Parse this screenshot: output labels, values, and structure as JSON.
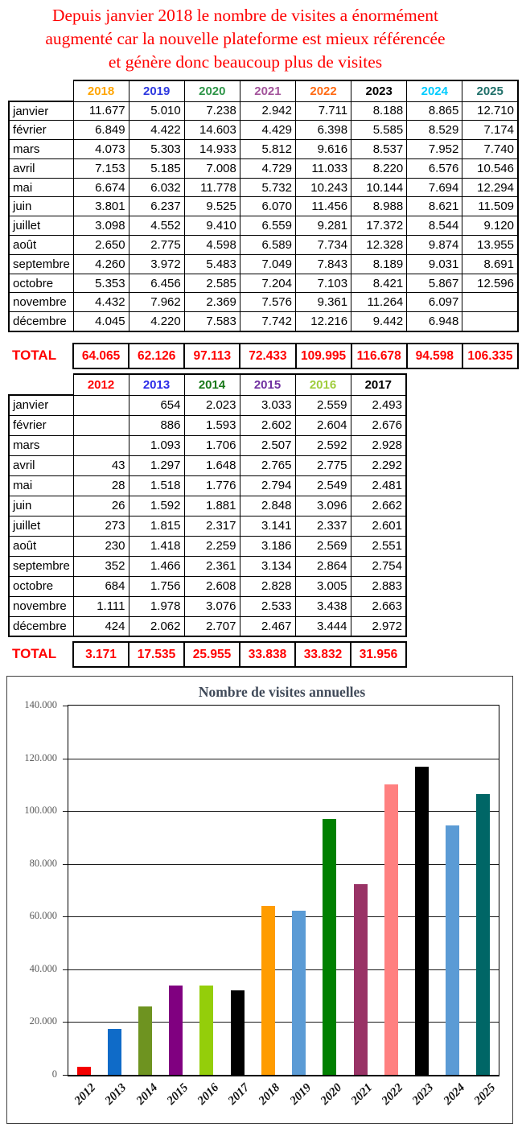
{
  "title": {
    "lines": [
      "Depuis janvier 2018 le nombre de visites a énormément",
      "augmenté car la nouvelle plateforme est mieux référencée",
      "et génère donc beaucoup plus de visites"
    ]
  },
  "table_recent": {
    "columns": [
      {
        "label": "2018",
        "color": "#FFA500"
      },
      {
        "label": "2019",
        "color": "#2E39E0"
      },
      {
        "label": "2020",
        "color": "#2E9548"
      },
      {
        "label": "2021",
        "color": "#A3549B"
      },
      {
        "label": "2022",
        "color": "#FF6A13"
      },
      {
        "label": "2023",
        "color": "#000000"
      },
      {
        "label": "2024",
        "color": "#00CCFF"
      },
      {
        "label": "2025",
        "color": "#20706A"
      }
    ],
    "months": [
      "janvier",
      "février",
      "mars",
      "avril",
      "mai",
      "juin",
      "juillet",
      "août",
      "septembre",
      "octobre",
      "novembre",
      "décembre"
    ],
    "rows": [
      [
        "11.677",
        "5.010",
        "7.238",
        "2.942",
        "7.711",
        "8.188",
        "8.865",
        "12.710"
      ],
      [
        "6.849",
        "4.422",
        "14.603",
        "4.429",
        "6.398",
        "5.585",
        "8.529",
        "7.174"
      ],
      [
        "4.073",
        "5.303",
        "14.933",
        "5.812",
        "9.616",
        "8.537",
        "7.952",
        "7.740"
      ],
      [
        "7.153",
        "5.185",
        "7.008",
        "4.729",
        "11.033",
        "8.220",
        "6.576",
        "10.546"
      ],
      [
        "6.674",
        "6.032",
        "11.778",
        "5.732",
        "10.243",
        "10.144",
        "7.694",
        "12.294"
      ],
      [
        "3.801",
        "6.237",
        "9.525",
        "6.070",
        "11.456",
        "8.988",
        "8.621",
        "11.509"
      ],
      [
        "3.098",
        "4.552",
        "9.410",
        "6.559",
        "9.281",
        "17.372",
        "8.544",
        "9.120"
      ],
      [
        "2.650",
        "2.775",
        "4.598",
        "6.589",
        "7.734",
        "12.328",
        "9.874",
        "13.955"
      ],
      [
        "4.260",
        "3.972",
        "5.483",
        "7.049",
        "7.843",
        "8.189",
        "9.031",
        "8.691"
      ],
      [
        "5.353",
        "6.456",
        "2.585",
        "7.204",
        "7.103",
        "8.421",
        "5.867",
        "12.596"
      ],
      [
        "4.432",
        "7.962",
        "2.369",
        "7.576",
        "9.361",
        "11.264",
        "6.097",
        ""
      ],
      [
        "4.045",
        "4.220",
        "7.583",
        "7.742",
        "12.216",
        "9.442",
        "6.948",
        ""
      ]
    ],
    "total_label": "TOTAL",
    "totals": [
      "64.065",
      "62.126",
      "97.113",
      "72.433",
      "109.995",
      "116.678",
      "94.598",
      "106.335"
    ]
  },
  "table_old": {
    "columns": [
      {
        "label": "2012",
        "color": "#FF0000"
      },
      {
        "label": "2013",
        "color": "#2B2BE8"
      },
      {
        "label": "2014",
        "color": "#187818"
      },
      {
        "label": "2015",
        "color": "#7030A0"
      },
      {
        "label": "2016",
        "color": "#9FCC3B"
      },
      {
        "label": "2017",
        "color": "#000000"
      }
    ],
    "months": [
      "janvier",
      "février",
      "mars",
      "avril",
      "mai",
      "juin",
      "juillet",
      "août",
      "septembre",
      "octobre",
      "novembre",
      "décembre"
    ],
    "rows": [
      [
        "",
        "654",
        "2.023",
        "3.033",
        "2.559",
        "2.493"
      ],
      [
        "",
        "886",
        "1.593",
        "2.602",
        "2.604",
        "2.676"
      ],
      [
        "",
        "1.093",
        "1.706",
        "2.507",
        "2.592",
        "2.928"
      ],
      [
        "43",
        "1.297",
        "1.648",
        "2.765",
        "2.775",
        "2.292"
      ],
      [
        "28",
        "1.518",
        "1.776",
        "2.794",
        "2.549",
        "2.481"
      ],
      [
        "26",
        "1.592",
        "1.881",
        "2.848",
        "3.096",
        "2.662"
      ],
      [
        "273",
        "1.815",
        "2.317",
        "3.141",
        "2.337",
        "2.601"
      ],
      [
        "230",
        "1.418",
        "2.259",
        "3.186",
        "2.569",
        "2.551"
      ],
      [
        "352",
        "1.466",
        "2.361",
        "3.134",
        "2.864",
        "2.754"
      ],
      [
        "684",
        "1.756",
        "2.608",
        "2.828",
        "3.005",
        "2.883"
      ],
      [
        "1.111",
        "1.978",
        "3.076",
        "2.533",
        "3.438",
        "2.663"
      ],
      [
        "424",
        "2.062",
        "2.707",
        "2.467",
        "3.444",
        "2.972"
      ]
    ],
    "total_label": "TOTAL",
    "totals": [
      "3.171",
      "17.535",
      "25.955",
      "33.838",
      "33.832",
      "31.956"
    ]
  },
  "chart_data": {
    "type": "bar",
    "title": "Nombre de visites annuelles",
    "categories": [
      "2012",
      "2013",
      "2014",
      "2015",
      "2016",
      "2017",
      "2018",
      "2019",
      "2020",
      "2021",
      "2022",
      "2023",
      "2024",
      "2025"
    ],
    "values": [
      3171,
      17535,
      25955,
      33838,
      33832,
      31956,
      64065,
      62126,
      97113,
      72433,
      109995,
      116678,
      94598,
      106335
    ],
    "bar_colors": [
      "#F40000",
      "#0F6BC8",
      "#6E9320",
      "#800080",
      "#94CE0A",
      "#000000",
      "#FF9C00",
      "#5B9BD5",
      "#008000",
      "#993366",
      "#FF8080",
      "#000000",
      "#5B9BD5",
      "#006666"
    ],
    "xlabel": "",
    "ylabel": "",
    "ylim": [
      0,
      140000
    ],
    "ytick_interval": 20000,
    "ytick_labels": [
      "0",
      "20.000",
      "40.000",
      "60.000",
      "80.000",
      "100.000",
      "120.000",
      "140.000"
    ],
    "grid": true,
    "legend": "none"
  }
}
